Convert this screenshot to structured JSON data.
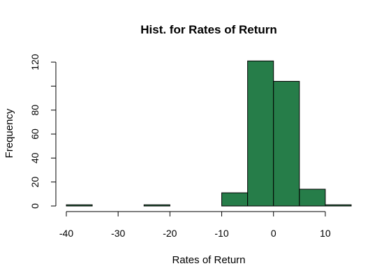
{
  "chart_data": {
    "type": "bar",
    "title": "Hist. for Rates of Return",
    "xlabel": "Rates of Return",
    "ylabel": "Frequency",
    "bin_edges": [
      -40,
      -35,
      -30,
      -25,
      -20,
      -15,
      -10,
      -5,
      0,
      5,
      10,
      15
    ],
    "values": [
      1,
      0,
      0,
      1,
      0,
      0,
      11,
      121,
      104,
      14,
      1
    ],
    "xlim": [
      -40,
      15
    ],
    "ylim": [
      0,
      120
    ],
    "x_ticks": [
      -40,
      -30,
      -20,
      -10,
      0,
      10
    ],
    "y_ticks": [
      0,
      20,
      40,
      60,
      80,
      100,
      120
    ],
    "y_tick_labels": [
      "0",
      "20",
      "40",
      "60",
      "80",
      "",
      "120"
    ],
    "bar_color": "#267d49",
    "grid": false
  }
}
